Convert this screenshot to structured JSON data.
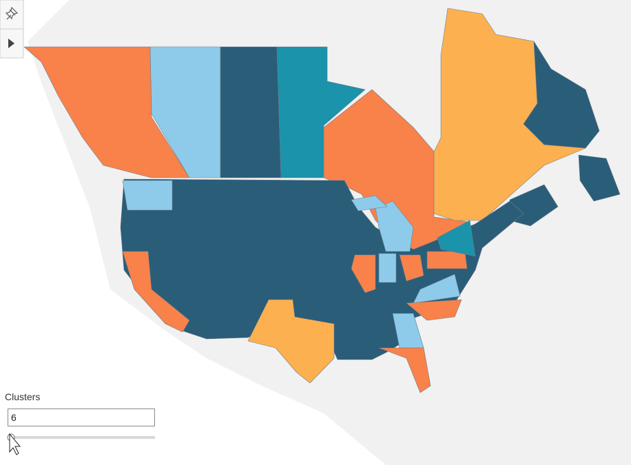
{
  "controls": {
    "clusters": {
      "label": "Clusters",
      "value": 6
    }
  }
}
